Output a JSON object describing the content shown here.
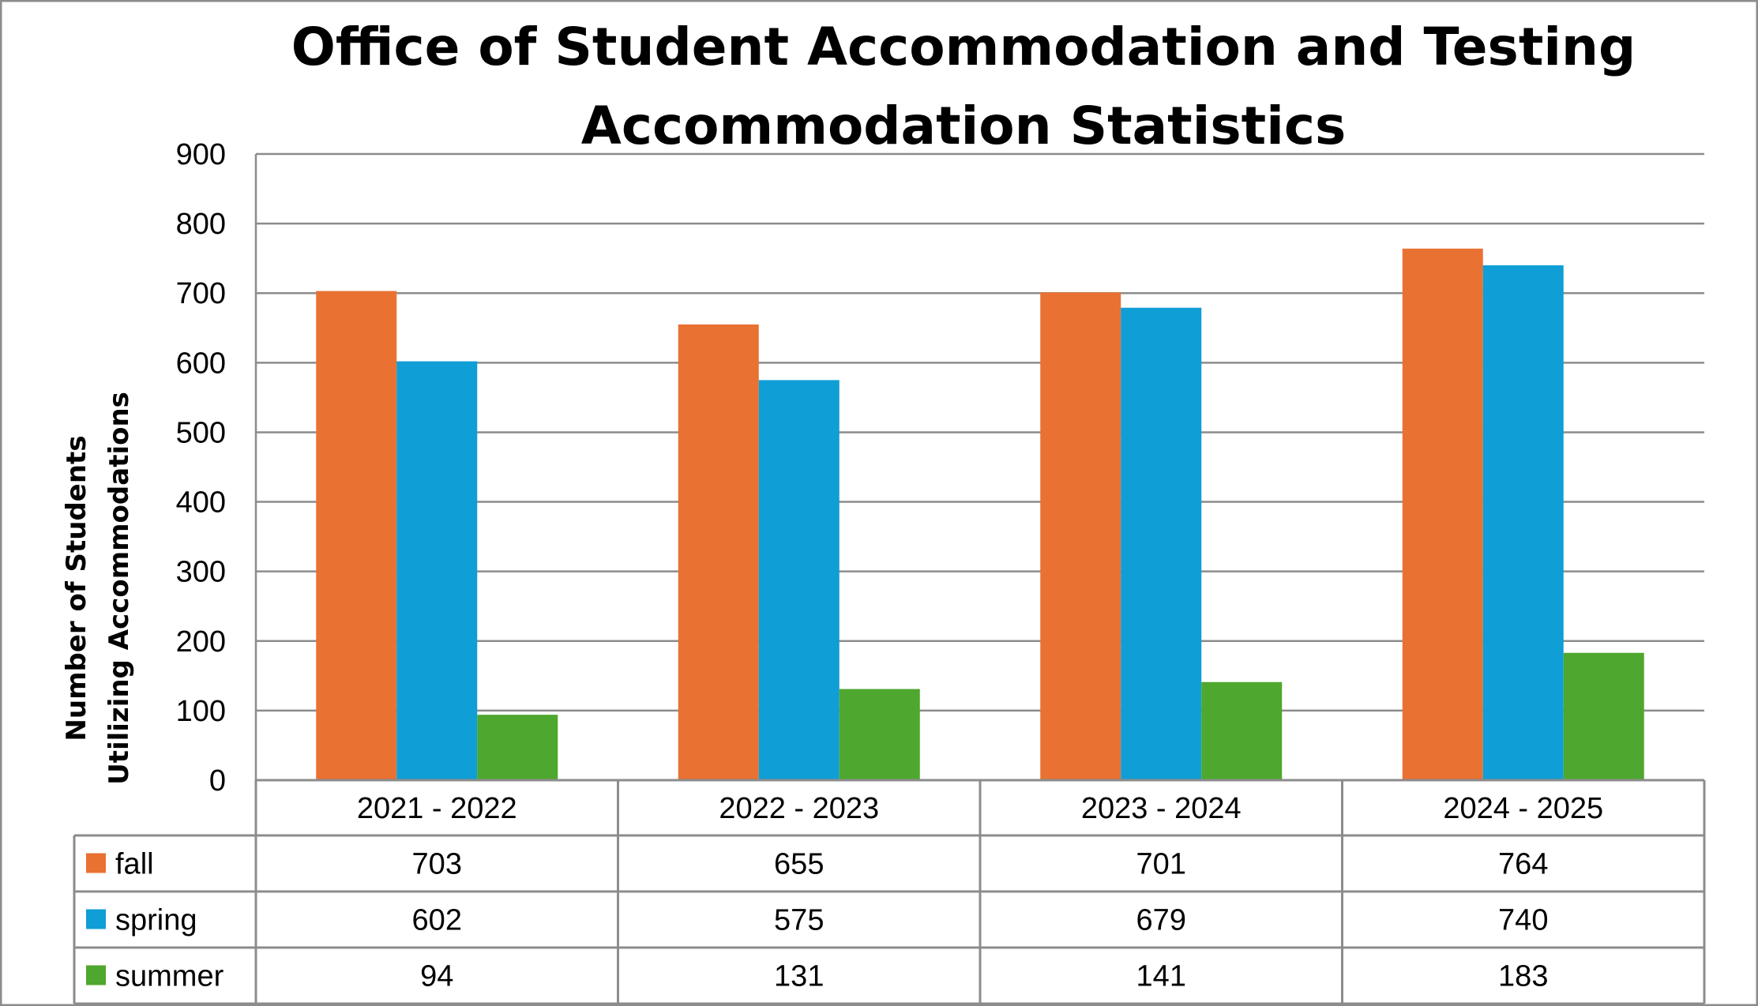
{
  "chart_data": {
    "type": "bar",
    "title": [
      "Office of Student Accommodation and Testing",
      "Accommodation Statistics"
    ],
    "xlabel": "",
    "ylabel": [
      "Number of  Students",
      "Utilizing Accommodations"
    ],
    "ylim": [
      0,
      900
    ],
    "yticks": [
      0,
      100,
      200,
      300,
      400,
      500,
      600,
      700,
      800,
      900
    ],
    "grid": true,
    "legend": "data-table",
    "categories": [
      "2021 - 2022",
      "2022 - 2023",
      "2023 - 2024",
      "2024 - 2025"
    ],
    "series": [
      {
        "name": "fall",
        "color": "#E97132",
        "values": [
          703,
          655,
          701,
          764
        ]
      },
      {
        "name": "spring",
        "color": "#0F9ED5",
        "values": [
          602,
          575,
          679,
          740
        ]
      },
      {
        "name": "summer",
        "color": "#4EA72E",
        "values": [
          94,
          131,
          141,
          183
        ]
      }
    ]
  }
}
